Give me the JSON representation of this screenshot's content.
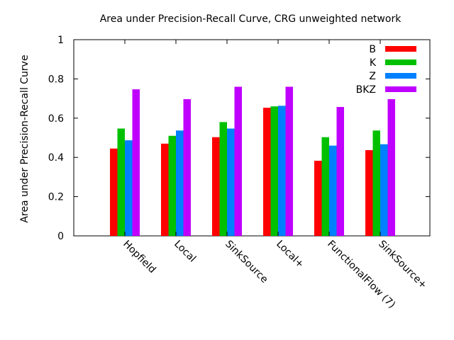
{
  "chart_data": {
    "type": "bar",
    "title": "Area under Precision-Recall Curve, CRG unweighted network",
    "xlabel": "",
    "ylabel": "Area under Precision-Recall Curve",
    "ylim": [
      0,
      1
    ],
    "yticks": [
      0,
      0.2,
      0.4,
      0.6,
      0.8,
      1
    ],
    "ytick_labels": [
      "0",
      "0.2",
      "0.4",
      "0.6",
      "0.8",
      "1"
    ],
    "grid": false,
    "legend_position": "top-right",
    "categories": [
      "Hopfield",
      "Local",
      "SinkSource",
      "Local+",
      "FunctionalFlow (7)",
      "SinkSource+"
    ],
    "series": [
      {
        "name": "B",
        "color": "#ff0000",
        "values": [
          0.445,
          0.47,
          0.503,
          0.653,
          0.383,
          0.437
        ]
      },
      {
        "name": "K",
        "color": "#00c000",
        "values": [
          0.547,
          0.51,
          0.58,
          0.66,
          0.503,
          0.537
        ]
      },
      {
        "name": "Z",
        "color": "#0080ff",
        "values": [
          0.487,
          0.537,
          0.547,
          0.663,
          0.46,
          0.467
        ]
      },
      {
        "name": "BKZ",
        "color": "#c000ff",
        "values": [
          0.747,
          0.697,
          0.76,
          0.76,
          0.657,
          0.697
        ]
      }
    ]
  }
}
